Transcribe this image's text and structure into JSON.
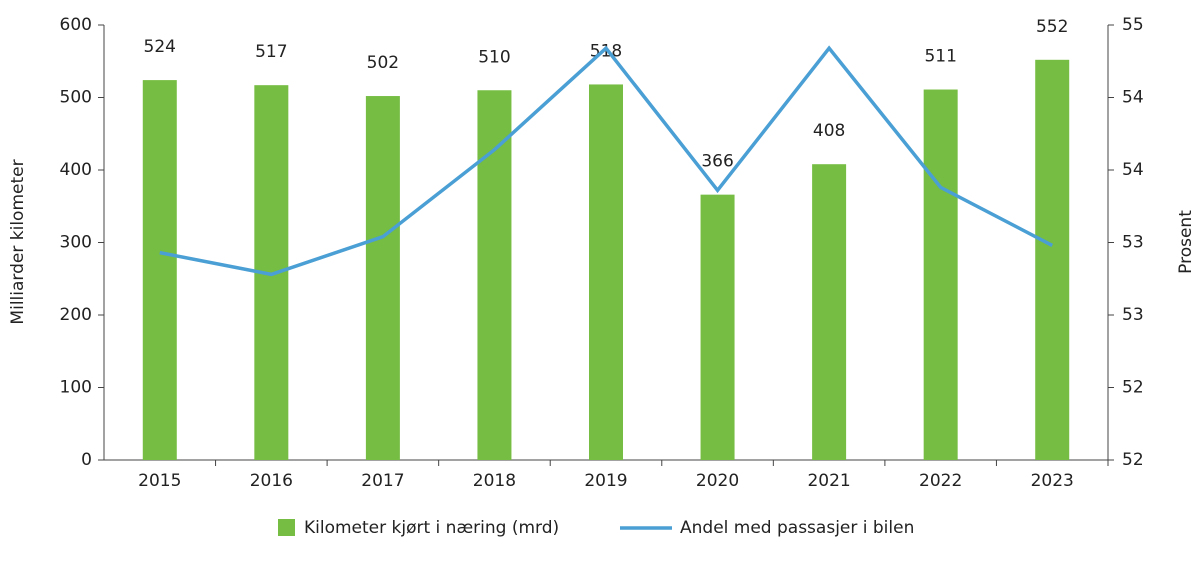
{
  "chart_data": {
    "type": "bar-line",
    "categories": [
      "2015",
      "2016",
      "2017",
      "2018",
      "2019",
      "2020",
      "2021",
      "2022",
      "2023"
    ],
    "y_label": "Milliarder kilometer",
    "y2_label": "Prosent",
    "ylim": [
      0,
      600
    ],
    "yticks": [
      0,
      100,
      200,
      300,
      400,
      500,
      600
    ],
    "y2lim": [
      52,
      55
    ],
    "y2ticks": [
      52,
      {
        "value": 52.5,
        "label": "52"
      },
      53,
      {
        "value": 53.5,
        "label": "53"
      },
      54,
      {
        "value": 54.5,
        "label": "54"
      },
      55
    ],
    "series": [
      {
        "name": "Kilometer kjørt i næring (mrd)",
        "type": "bar",
        "color": "#76bd43",
        "values": [
          524,
          517,
          502,
          510,
          518,
          366,
          408,
          511,
          552
        ]
      },
      {
        "name": "Andel med passasjer i bilen",
        "type": "line",
        "axis": "y2",
        "color": "#4a9fd4",
        "values": [
          53.43,
          53.28,
          53.54,
          54.14,
          54.84,
          53.86,
          54.84,
          53.88,
          53.48
        ]
      }
    ]
  }
}
